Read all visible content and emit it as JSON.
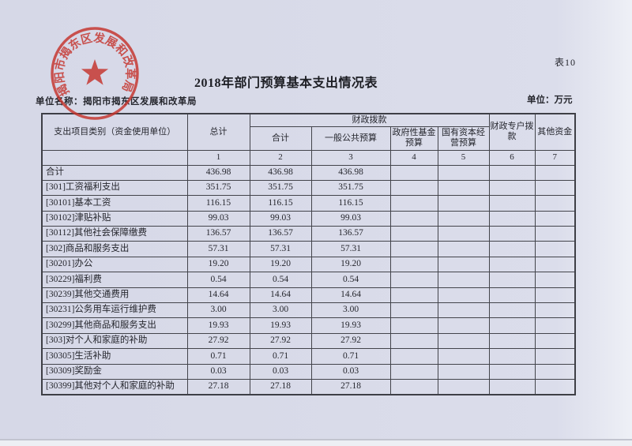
{
  "page": {
    "table_tag": "表10",
    "title": "2018年部门预算基本支出情况表",
    "unit_name_line": "单位名称：揭阳市揭东区发展和改革局",
    "unit_label": "单位：万元"
  },
  "seal": {
    "text": "揭阳市揭东区发展和改革局",
    "color": "#c5332c"
  },
  "colors": {
    "paper": "#d9dbe9",
    "paper_edge": "#eef0f6",
    "table_border": "#43444b",
    "text": "#26272e",
    "seal_red": "#c5332c"
  },
  "table": {
    "header": {
      "category": "支出项目类别（资金使用单位）",
      "total": "总计",
      "fiscal_group": "财政拨款",
      "fiscal_sub": [
        "合计",
        "一般公共预算",
        "政府性基金预算",
        "国有资本经营预算"
      ],
      "special_account": "财政专户拨款",
      "other_funds": "其他资金",
      "col_numbers": [
        "1",
        "2",
        "3",
        "4",
        "5",
        "6",
        "7"
      ]
    },
    "rows": [
      {
        "label": "合计",
        "values": [
          "436.98",
          "436.98",
          "436.98",
          "",
          "",
          "",
          ""
        ]
      },
      {
        "label": "[301]工资福利支出",
        "values": [
          "351.75",
          "351.75",
          "351.75",
          "",
          "",
          "",
          ""
        ]
      },
      {
        "label": "[30101]基本工资",
        "values": [
          "116.15",
          "116.15",
          "116.15",
          "",
          "",
          "",
          ""
        ]
      },
      {
        "label": "[30102]津贴补贴",
        "values": [
          "99.03",
          "99.03",
          "99.03",
          "",
          "",
          "",
          ""
        ]
      },
      {
        "label": "[30112]其他社会保障缴费",
        "values": [
          "136.57",
          "136.57",
          "136.57",
          "",
          "",
          "",
          ""
        ]
      },
      {
        "label": "[302]商品和服务支出",
        "values": [
          "57.31",
          "57.31",
          "57.31",
          "",
          "",
          "",
          ""
        ]
      },
      {
        "label": "[30201]办公",
        "values": [
          "19.20",
          "19.20",
          "19.20",
          "",
          "",
          "",
          ""
        ]
      },
      {
        "label": "[30229]福利费",
        "values": [
          "0.54",
          "0.54",
          "0.54",
          "",
          "",
          "",
          ""
        ]
      },
      {
        "label": "[30239]其他交通费用",
        "values": [
          "14.64",
          "14.64",
          "14.64",
          "",
          "",
          "",
          ""
        ]
      },
      {
        "label": "[30231]公务用车运行维护费",
        "values": [
          "3.00",
          "3.00",
          "3.00",
          "",
          "",
          "",
          ""
        ]
      },
      {
        "label": "[30299]其他商品和服务支出",
        "values": [
          "19.93",
          "19.93",
          "19.93",
          "",
          "",
          "",
          ""
        ]
      },
      {
        "label": "[303]对个人和家庭的补助",
        "values": [
          "27.92",
          "27.92",
          "27.92",
          "",
          "",
          "",
          ""
        ]
      },
      {
        "label": "[30305]生活补助",
        "values": [
          "0.71",
          "0.71",
          "0.71",
          "",
          "",
          "",
          ""
        ]
      },
      {
        "label": "[30309]奖励金",
        "values": [
          "0.03",
          "0.03",
          "0.03",
          "",
          "",
          "",
          ""
        ]
      },
      {
        "label": "[30399]其他对个人和家庭的补助",
        "values": [
          "27.18",
          "27.18",
          "27.18",
          "",
          "",
          "",
          ""
        ]
      }
    ]
  }
}
